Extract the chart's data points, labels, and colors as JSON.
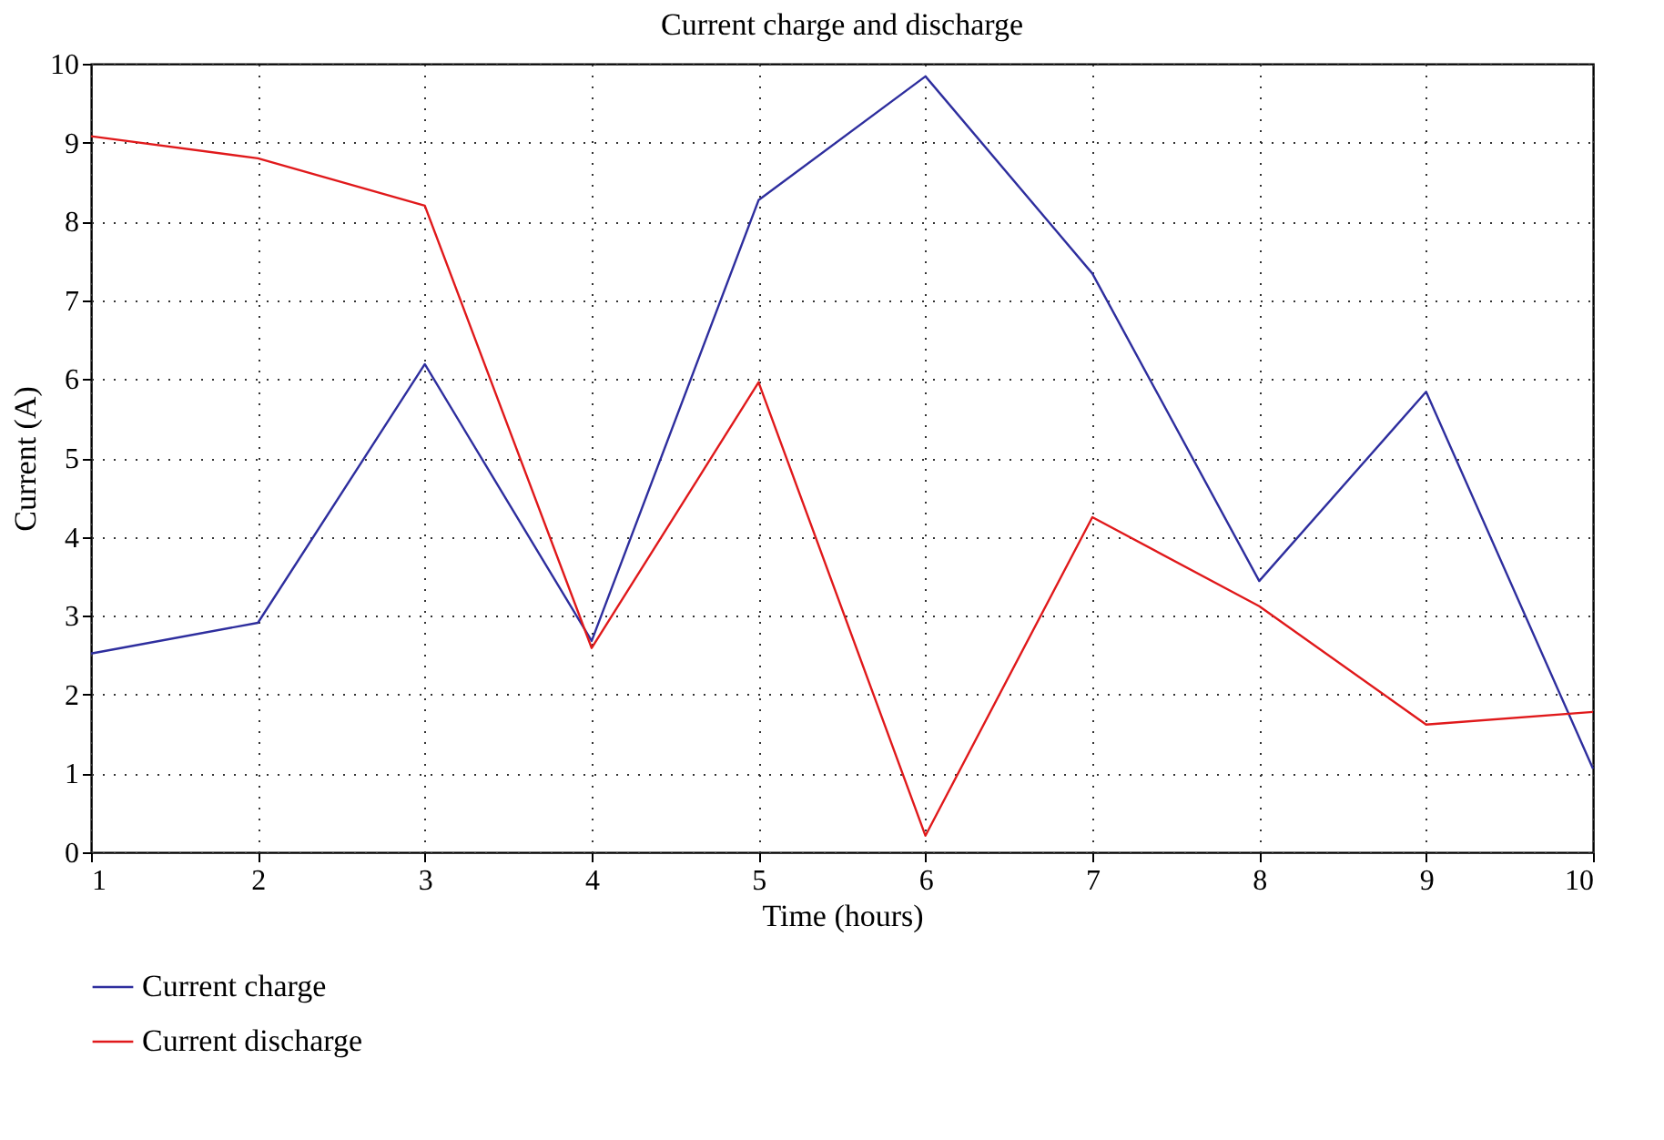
{
  "chart_data": {
    "type": "line",
    "title": "Current charge and discharge",
    "xlabel": "Time (hours)",
    "ylabel": "Current (A)",
    "x": [
      1,
      2,
      3,
      4,
      5,
      6,
      7,
      8,
      9,
      10
    ],
    "series": [
      {
        "name": "Current charge",
        "color": "#2e2e9e",
        "values": [
          2.52,
          2.91,
          6.19,
          2.68,
          8.27,
          9.84,
          7.34,
          3.44,
          5.84,
          1.06
        ]
      },
      {
        "name": "Current discharge",
        "color": "#e0191b",
        "values": [
          9.08,
          8.8,
          8.2,
          2.59,
          5.96,
          0.21,
          4.25,
          3.12,
          1.62,
          1.78
        ]
      }
    ],
    "xlim": [
      1,
      10
    ],
    "xticks": [
      1,
      2,
      3,
      4,
      5,
      6,
      7,
      8,
      9,
      10
    ],
    "ylim": [
      0,
      10
    ],
    "yticks": [
      0,
      1,
      2,
      3,
      4,
      5,
      6,
      7,
      8,
      9,
      10
    ],
    "grid": true,
    "legend": "bottom left",
    "line_style": "solid",
    "marker": "none"
  }
}
